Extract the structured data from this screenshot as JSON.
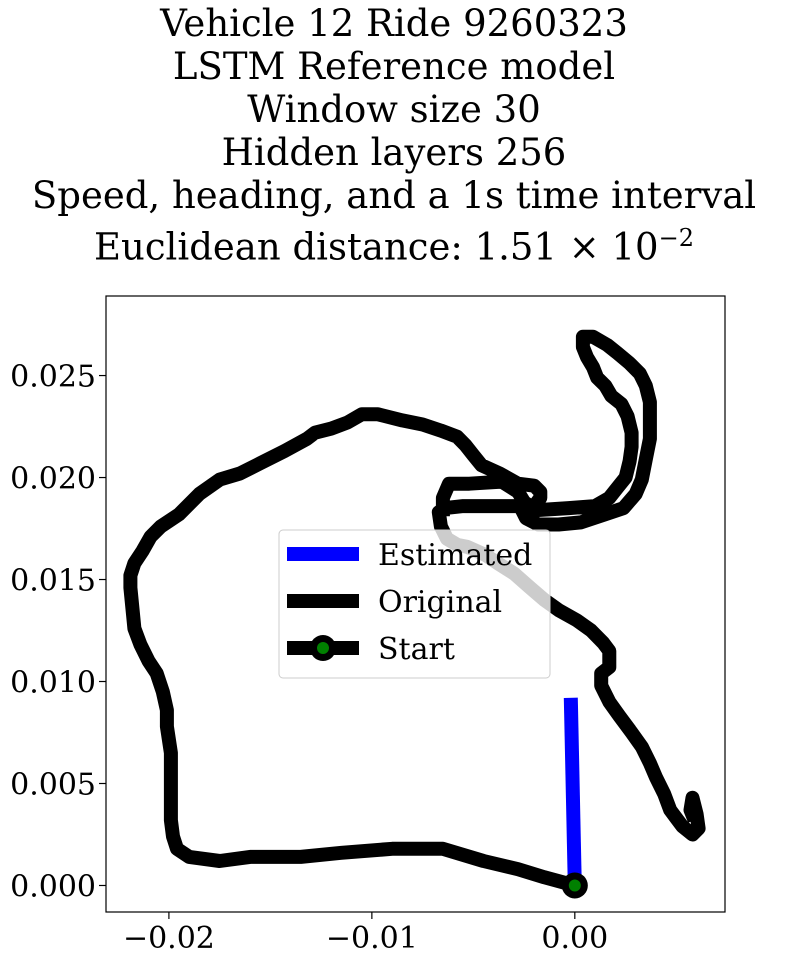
{
  "chart_data": {
    "type": "line",
    "title_lines": [
      "Vehicle 12 Ride 9260323",
      "LSTM Reference model",
      "Window size 30",
      "Hidden layers 256",
      "Speed, heading, and a 1s time interval"
    ],
    "title_metric": {
      "prefix": "Euclidean distance: 1.51",
      "times": "×",
      "base": "10",
      "exponent": "−2"
    },
    "xlim": [
      -0.0231,
      0.0074
    ],
    "ylim": [
      -0.0013,
      0.0289
    ],
    "x_ticks": [
      {
        "value": -0.02,
        "label": "−0.02"
      },
      {
        "value": -0.01,
        "label": "−0.01"
      },
      {
        "value": 0.0,
        "label": "0.00"
      }
    ],
    "y_ticks": [
      {
        "value": 0.0,
        "label": "0.000"
      },
      {
        "value": 0.005,
        "label": "0.005"
      },
      {
        "value": 0.01,
        "label": "0.010"
      },
      {
        "value": 0.015,
        "label": "0.015"
      },
      {
        "value": 0.02,
        "label": "0.020"
      },
      {
        "value": 0.025,
        "label": "0.025"
      }
    ],
    "grid": false,
    "legend_position": "center",
    "series": [
      {
        "name": "Estimated",
        "color": "#0000ff",
        "points": [
          [
            0.0,
            0.0
          ],
          [
            -0.0002,
            0.0092
          ]
        ]
      },
      {
        "name": "Original",
        "color": "#000000",
        "points": [
          [
            0.0,
            0.0
          ],
          [
            -0.0015,
            0.0004
          ],
          [
            -0.0028,
            0.0008
          ],
          [
            -0.0045,
            0.0012
          ],
          [
            -0.0065,
            0.0018
          ],
          [
            -0.009,
            0.0018
          ],
          [
            -0.0115,
            0.0016
          ],
          [
            -0.0135,
            0.0014
          ],
          [
            -0.016,
            0.0014
          ],
          [
            -0.0175,
            0.0012
          ],
          [
            -0.019,
            0.0014
          ],
          [
            -0.0196,
            0.0018
          ],
          [
            -0.0198,
            0.0024
          ],
          [
            -0.0199,
            0.0032
          ],
          [
            -0.0199,
            0.0048
          ],
          [
            -0.0199,
            0.0065
          ],
          [
            -0.0201,
            0.0078
          ],
          [
            -0.0201,
            0.0086
          ],
          [
            -0.0203,
            0.0095
          ],
          [
            -0.0206,
            0.0104
          ],
          [
            -0.021,
            0.011
          ],
          [
            -0.0214,
            0.0118
          ],
          [
            -0.0217,
            0.0126
          ],
          [
            -0.0218,
            0.0136
          ],
          [
            -0.0219,
            0.0146
          ],
          [
            -0.0219,
            0.0152
          ],
          [
            -0.0217,
            0.0158
          ],
          [
            -0.0213,
            0.0164
          ],
          [
            -0.0209,
            0.0171
          ],
          [
            -0.0204,
            0.0176
          ],
          [
            -0.0195,
            0.0182
          ],
          [
            -0.0185,
            0.0192
          ],
          [
            -0.0175,
            0.0199
          ],
          [
            -0.0165,
            0.0202
          ],
          [
            -0.0155,
            0.0207
          ],
          [
            -0.0143,
            0.0213
          ],
          [
            -0.0132,
            0.0219
          ],
          [
            -0.0128,
            0.0222
          ],
          [
            -0.012,
            0.0224
          ],
          [
            -0.0112,
            0.0227
          ],
          [
            -0.0105,
            0.0231
          ],
          [
            -0.0097,
            0.0231
          ],
          [
            -0.0085,
            0.0228
          ],
          [
            -0.0075,
            0.0226
          ],
          [
            -0.0066,
            0.0223
          ],
          [
            -0.0058,
            0.022
          ],
          [
            -0.0054,
            0.0216
          ],
          [
            -0.005,
            0.0211
          ],
          [
            -0.0046,
            0.0206
          ],
          [
            -0.0037,
            0.0202
          ],
          [
            -0.0028,
            0.0197
          ],
          [
            -0.002,
            0.0196
          ],
          [
            -0.0017,
            0.0193
          ],
          [
            -0.0017,
            0.019
          ],
          [
            -0.002,
            0.0186
          ],
          [
            -0.003,
            0.0186
          ],
          [
            -0.0045,
            0.0186
          ],
          [
            -0.0055,
            0.0186
          ],
          [
            -0.0064,
            0.0185
          ],
          [
            -0.0067,
            0.0183
          ],
          [
            -0.0066,
            0.0176
          ],
          [
            -0.0063,
            0.017
          ],
          [
            -0.0058,
            0.0167
          ],
          [
            -0.0053,
            0.0166
          ],
          [
            -0.0044,
            0.0162
          ],
          [
            -0.0038,
            0.0158
          ],
          [
            -0.003,
            0.0153
          ],
          [
            -0.0022,
            0.0146
          ],
          [
            -0.0015,
            0.014
          ],
          [
            -0.0008,
            0.0135
          ],
          [
            0.0001,
            0.013
          ],
          [
            0.0008,
            0.0125
          ],
          [
            0.0014,
            0.0119
          ],
          [
            0.0017,
            0.0115
          ],
          [
            0.0017,
            0.0107
          ],
          [
            0.0013,
            0.0104
          ],
          [
            0.0013,
            0.0098
          ],
          [
            0.0017,
            0.009
          ],
          [
            0.0022,
            0.0083
          ],
          [
            0.0028,
            0.0075
          ],
          [
            0.0033,
            0.0068
          ],
          [
            0.0037,
            0.006
          ],
          [
            0.004,
            0.0053
          ],
          [
            0.0044,
            0.0045
          ],
          [
            0.0047,
            0.0037
          ],
          [
            0.005,
            0.0033
          ],
          [
            0.0053,
            0.0029
          ],
          [
            0.0058,
            0.0025
          ],
          [
            0.0061,
            0.0028
          ],
          [
            0.006,
            0.0035
          ],
          [
            0.0058,
            0.0043
          ],
          [
            0.0057,
            0.0037
          ],
          [
            0.0059,
            0.0032
          ]
        ]
      },
      {
        "name": "Original",
        "color": "#000000",
        "points": [
          [
            -0.0065,
            0.0181
          ],
          [
            -0.0065,
            0.019
          ],
          [
            -0.0062,
            0.0197
          ],
          [
            -0.0052,
            0.0197
          ],
          [
            -0.0036,
            0.0198
          ],
          [
            -0.0028,
            0.0193
          ],
          [
            -0.0025,
            0.0188
          ],
          [
            -0.0019,
            0.0184
          ],
          [
            -0.0003,
            0.0185
          ],
          [
            0.001,
            0.0186
          ],
          [
            0.0017,
            0.019
          ],
          [
            0.0021,
            0.0195
          ],
          [
            0.0025,
            0.02
          ],
          [
            0.0027,
            0.0208
          ],
          [
            0.0028,
            0.0215
          ],
          [
            0.0028,
            0.0222
          ],
          [
            0.0026,
            0.023
          ],
          [
            0.0023,
            0.0236
          ],
          [
            0.0018,
            0.024
          ],
          [
            0.0015,
            0.0245
          ],
          [
            0.0011,
            0.0249
          ],
          [
            0.0009,
            0.0254
          ],
          [
            0.0006,
            0.0259
          ],
          [
            0.0004,
            0.0264
          ],
          [
            0.0004,
            0.0269
          ],
          [
            0.0009,
            0.0269
          ],
          [
            0.0016,
            0.0265
          ],
          [
            0.0021,
            0.0261
          ],
          [
            0.0027,
            0.0256
          ],
          [
            0.0032,
            0.0251
          ],
          [
            0.0035,
            0.0245
          ],
          [
            0.0037,
            0.0237
          ],
          [
            0.0037,
            0.0228
          ],
          [
            0.0037,
            0.0219
          ],
          [
            0.0035,
            0.0209
          ],
          [
            0.0033,
            0.0199
          ],
          [
            0.003,
            0.0192
          ],
          [
            0.0024,
            0.0185
          ],
          [
            0.0015,
            0.0182
          ],
          [
            0.0003,
            0.0178
          ],
          [
            -0.0008,
            0.0177
          ],
          [
            -0.0018,
            0.0177
          ],
          [
            -0.0024,
            0.018
          ],
          [
            -0.0027,
            0.0186
          ]
        ]
      }
    ],
    "start": {
      "name": "Start",
      "x": 0.0,
      "y": 0.0,
      "fill": "#008000",
      "edge": "#000000"
    },
    "legend": [
      {
        "label": "Estimated",
        "kind": "line",
        "color": "#0000ff"
      },
      {
        "label": "Original",
        "kind": "line",
        "color": "#000000"
      },
      {
        "label": "Start",
        "kind": "marker",
        "color": "#000000",
        "fill": "#008000"
      }
    ]
  }
}
